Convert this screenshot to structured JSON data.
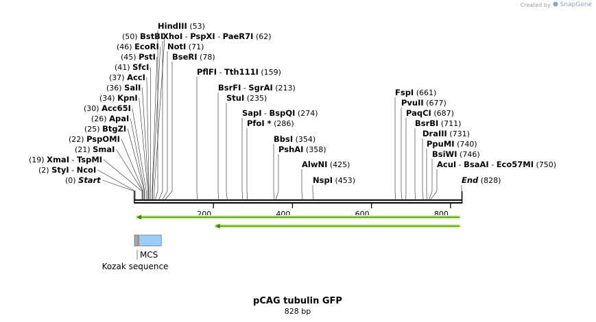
{
  "credit": {
    "prefix": "Created by",
    "brand": "SnapGene"
  },
  "title": "pCAG tubulin GFP",
  "length_text": "828 bp",
  "sequence_length": 828,
  "ruler_ticks": [
    {
      "value": 200,
      "label": "200"
    },
    {
      "value": 400,
      "label": "400"
    },
    {
      "value": 600,
      "label": "600"
    },
    {
      "value": 800,
      "label": "800"
    }
  ],
  "sites": [
    {
      "names": [
        "Start"
      ],
      "pos": 0,
      "pos_text": "(0)",
      "italic": true
    },
    {
      "names": [
        "StyI",
        "NcoI"
      ],
      "pos": 2,
      "pos_text": "(2)"
    },
    {
      "names": [
        "XmaI",
        "TspMI"
      ],
      "pos": 19,
      "pos_text": "(19)"
    },
    {
      "names": [
        "SmaI"
      ],
      "pos": 21,
      "pos_text": "(21)"
    },
    {
      "names": [
        "PspOMI"
      ],
      "pos": 22,
      "pos_text": "(22)"
    },
    {
      "names": [
        "BtgZI"
      ],
      "pos": 25,
      "pos_text": "(25)"
    },
    {
      "names": [
        "ApaI"
      ],
      "pos": 26,
      "pos_text": "(26)"
    },
    {
      "names": [
        "Acc65I"
      ],
      "pos": 30,
      "pos_text": "(30)"
    },
    {
      "names": [
        "KpnI"
      ],
      "pos": 34,
      "pos_text": "(34)"
    },
    {
      "names": [
        "SalI"
      ],
      "pos": 36,
      "pos_text": "(36)"
    },
    {
      "names": [
        "AccI"
      ],
      "pos": 37,
      "pos_text": "(37)"
    },
    {
      "names": [
        "SfcI"
      ],
      "pos": 41,
      "pos_text": "(41)"
    },
    {
      "names": [
        "PstI"
      ],
      "pos": 45,
      "pos_text": "(45)"
    },
    {
      "names": [
        "EcoRI"
      ],
      "pos": 46,
      "pos_text": "(46)"
    },
    {
      "names": [
        "BstBI"
      ],
      "pos": 50,
      "pos_text": "(50)"
    },
    {
      "names": [
        "HindIII"
      ],
      "pos": 53,
      "pos_text": "(53)"
    },
    {
      "names": [
        "XhoI",
        "PspXI",
        "PaeR7I"
      ],
      "pos": 62,
      "pos_text": "(62)"
    },
    {
      "names": [
        "NotI"
      ],
      "pos": 71,
      "pos_text": "(71)"
    },
    {
      "names": [
        "BseRI"
      ],
      "pos": 78,
      "pos_text": "(78)"
    },
    {
      "names": [
        "PflFI",
        "Tth111I"
      ],
      "pos": 159,
      "pos_text": "(159)"
    },
    {
      "names": [
        "BsrFI",
        "SgrAI"
      ],
      "pos": 213,
      "pos_text": "(213)"
    },
    {
      "names": [
        "StuI"
      ],
      "pos": 235,
      "pos_text": "(235)"
    },
    {
      "names": [
        "SapI",
        "BspQI"
      ],
      "pos": 274,
      "pos_text": "(274)"
    },
    {
      "names": [
        "PfoI *"
      ],
      "pos": 286,
      "pos_text": "(286)"
    },
    {
      "names": [
        "BbsI"
      ],
      "pos": 354,
      "pos_text": "(354)"
    },
    {
      "names": [
        "PshAI"
      ],
      "pos": 358,
      "pos_text": "(358)"
    },
    {
      "names": [
        "AlwNI"
      ],
      "pos": 425,
      "pos_text": "(425)"
    },
    {
      "names": [
        "NspI"
      ],
      "pos": 453,
      "pos_text": "(453)"
    },
    {
      "names": [
        "FspI"
      ],
      "pos": 661,
      "pos_text": "(661)"
    },
    {
      "names": [
        "PvuII"
      ],
      "pos": 677,
      "pos_text": "(677)"
    },
    {
      "names": [
        "PaqCI"
      ],
      "pos": 687,
      "pos_text": "(687)"
    },
    {
      "names": [
        "BsrBI"
      ],
      "pos": 711,
      "pos_text": "(711)"
    },
    {
      "names": [
        "DraIII"
      ],
      "pos": 731,
      "pos_text": "(731)"
    },
    {
      "names": [
        "PpuMI"
      ],
      "pos": 740,
      "pos_text": "(740)"
    },
    {
      "names": [
        "BsiWI"
      ],
      "pos": 746,
      "pos_text": "(746)"
    },
    {
      "names": [
        "AcuI",
        "BsaAI",
        "Eco57MI"
      ],
      "pos": 750,
      "pos_text": "(750)"
    },
    {
      "names": [
        "End"
      ],
      "pos": 828,
      "pos_text": "(828)",
      "italic": true
    }
  ],
  "orfs": [
    {
      "start": 1,
      "end": 828,
      "direction": "reverse"
    },
    {
      "start": 200,
      "end": 828,
      "direction": "reverse"
    }
  ],
  "features": [
    {
      "name": "Kozak sequence",
      "start": 1,
      "end": 10,
      "color": "#a6a6a6"
    },
    {
      "name": "MCS",
      "start": 13,
      "end": 68,
      "color": "#99ccff"
    }
  ],
  "colors": {
    "orf_arrow": "#3a8a00",
    "orf_glow": "#d7f0a8",
    "backbone": "#111111"
  }
}
